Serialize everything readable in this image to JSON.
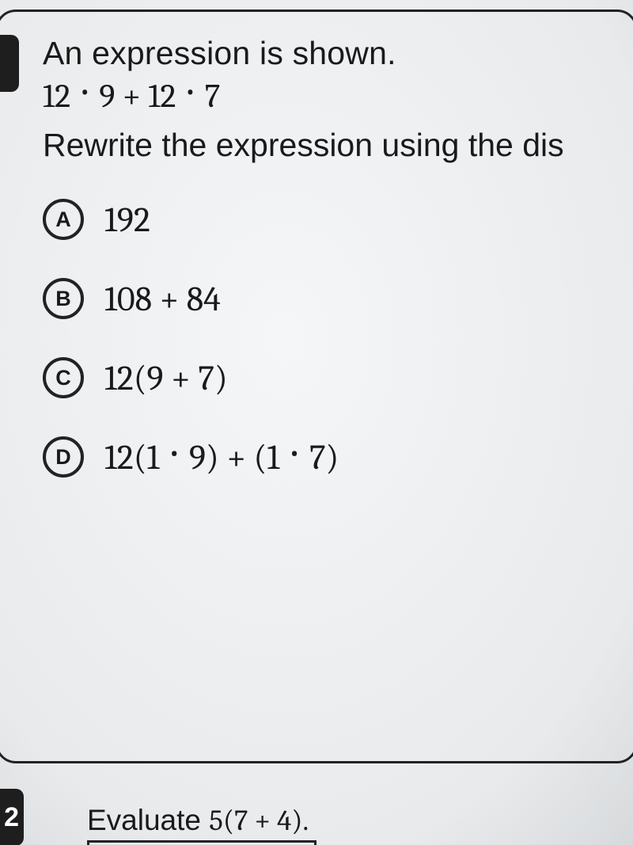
{
  "q1": {
    "prompt_line1": "An expression is shown.",
    "expression_html": "12 · 9 + 12 · 7",
    "prompt_line2": "Rewrite the expression using the dis",
    "options": {
      "A": "192",
      "B": "108 + 84",
      "C": "12(9 + 7)",
      "D": "12(1 · 9) + (1 · 7)"
    }
  },
  "q2": {
    "number": "2",
    "prompt_prefix": "Evaluate ",
    "expression": "5(7 + 4)."
  }
}
